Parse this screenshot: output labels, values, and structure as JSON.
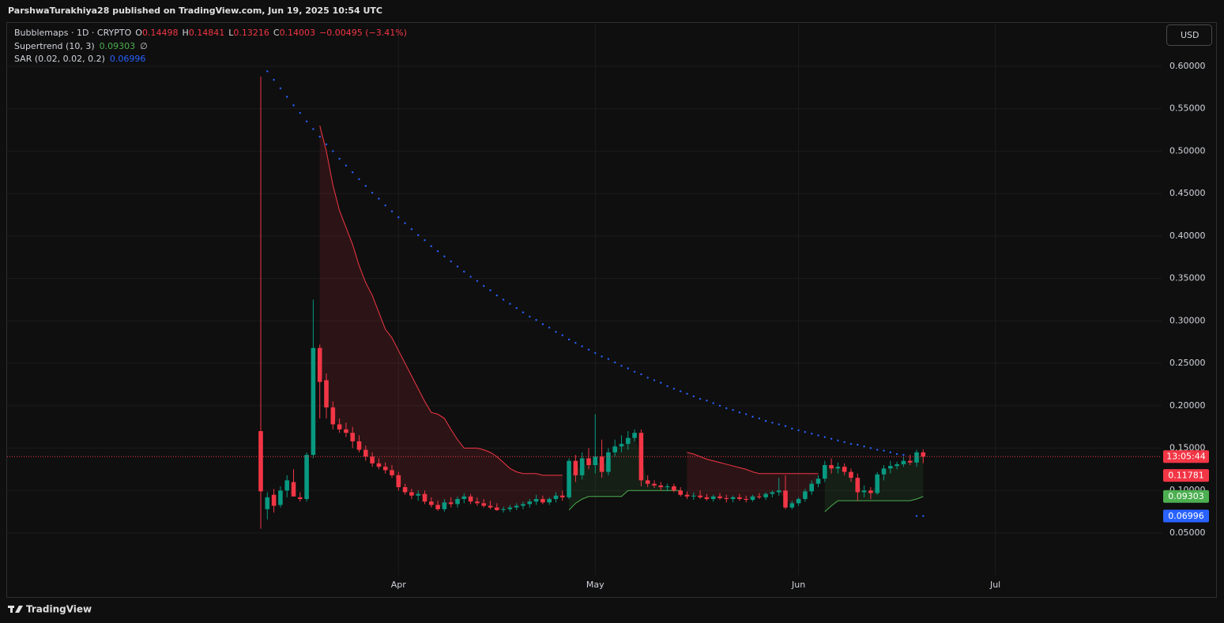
{
  "header": {
    "byline": "ParshwaTurakhiya28 published on TradingView.com, Jun 19, 2025 10:54 UTC",
    "currency": "USD",
    "brand": "TradingView"
  },
  "chart_data": {
    "type": "candlestick",
    "legend": {
      "symbol": "Bubblemaps · 1D · CRYPTO",
      "o": "O",
      "h": "H",
      "l": "L",
      "c": "C",
      "change": "−0.00495 (−3.41%)"
    },
    "up_color": "#089981",
    "down_color": "#f23645",
    "categories": [
      null,
      null,
      null,
      null,
      null,
      null,
      null,
      null,
      null,
      null,
      null,
      null,
      null,
      null,
      null,
      null,
      null,
      null,
      null,
      null,
      null,
      "Apr",
      null,
      null,
      null,
      null,
      null,
      null,
      null,
      null,
      null,
      null,
      null,
      null,
      null,
      null,
      null,
      null,
      null,
      null,
      null,
      null,
      null,
      null,
      null,
      null,
      null,
      null,
      null,
      null,
      null,
      "May",
      null,
      null,
      null,
      null,
      null,
      null,
      null,
      null,
      null,
      null,
      null,
      null,
      null,
      null,
      null,
      null,
      null,
      null,
      null,
      null,
      null,
      null,
      null,
      null,
      null,
      null,
      null,
      null,
      null,
      null,
      "Jun",
      null,
      null,
      null,
      null,
      null,
      null,
      null,
      null,
      null,
      null,
      null,
      null,
      null,
      null,
      null,
      null,
      null,
      null,
      null,
      null,
      null,
      null,
      null,
      null,
      null,
      null,
      null,
      null,
      null,
      "Jul"
    ],
    "ohlc": [
      [
        0.17,
        0.588,
        0.055,
        0.099
      ],
      [
        0.078,
        0.098,
        0.066,
        0.092
      ],
      [
        0.095,
        0.102,
        0.074,
        0.082
      ],
      [
        0.083,
        0.105,
        0.08,
        0.1
      ],
      [
        0.1,
        0.118,
        0.092,
        0.112
      ],
      [
        0.11,
        0.125,
        0.095,
        0.093
      ],
      [
        0.092,
        0.098,
        0.087,
        0.09
      ],
      [
        0.09,
        0.145,
        0.087,
        0.142
      ],
      [
        0.142,
        0.325,
        0.138,
        0.268
      ],
      [
        0.268,
        0.272,
        0.185,
        0.228
      ],
      [
        0.23,
        0.238,
        0.185,
        0.198
      ],
      [
        0.198,
        0.205,
        0.172,
        0.178
      ],
      [
        0.178,
        0.185,
        0.168,
        0.172
      ],
      [
        0.172,
        0.18,
        0.163,
        0.168
      ],
      [
        0.168,
        0.175,
        0.15,
        0.158
      ],
      [
        0.158,
        0.165,
        0.145,
        0.148
      ],
      [
        0.148,
        0.153,
        0.135,
        0.14
      ],
      [
        0.14,
        0.145,
        0.128,
        0.132
      ],
      [
        0.132,
        0.138,
        0.125,
        0.128
      ],
      [
        0.128,
        0.133,
        0.12,
        0.124
      ],
      [
        0.124,
        0.13,
        0.115,
        0.118
      ],
      [
        0.118,
        0.122,
        0.1,
        0.104
      ],
      [
        0.104,
        0.108,
        0.095,
        0.098
      ],
      [
        0.098,
        0.102,
        0.09,
        0.094
      ],
      [
        0.094,
        0.1,
        0.088,
        0.096
      ],
      [
        0.096,
        0.1,
        0.084,
        0.087
      ],
      [
        0.087,
        0.092,
        0.08,
        0.083
      ],
      [
        0.083,
        0.088,
        0.076,
        0.078
      ],
      [
        0.078,
        0.09,
        0.075,
        0.086
      ],
      [
        0.086,
        0.092,
        0.08,
        0.084
      ],
      [
        0.084,
        0.093,
        0.08,
        0.09
      ],
      [
        0.09,
        0.097,
        0.085,
        0.093
      ],
      [
        0.093,
        0.096,
        0.084,
        0.087
      ],
      [
        0.087,
        0.092,
        0.082,
        0.085
      ],
      [
        0.085,
        0.09,
        0.08,
        0.082
      ],
      [
        0.082,
        0.088,
        0.078,
        0.08
      ],
      [
        0.08,
        0.085,
        0.076,
        0.077
      ],
      [
        0.077,
        0.081,
        0.074,
        0.078
      ],
      [
        0.078,
        0.083,
        0.075,
        0.08
      ],
      [
        0.08,
        0.085,
        0.077,
        0.082
      ],
      [
        0.082,
        0.087,
        0.078,
        0.084
      ],
      [
        0.084,
        0.09,
        0.08,
        0.087
      ],
      [
        0.087,
        0.095,
        0.083,
        0.09
      ],
      [
        0.09,
        0.094,
        0.084,
        0.086
      ],
      [
        0.086,
        0.092,
        0.083,
        0.09
      ],
      [
        0.09,
        0.098,
        0.086,
        0.094
      ],
      [
        0.094,
        0.1,
        0.088,
        0.092
      ],
      [
        0.092,
        0.138,
        0.09,
        0.135
      ],
      [
        0.135,
        0.142,
        0.11,
        0.118
      ],
      [
        0.118,
        0.145,
        0.113,
        0.138
      ],
      [
        0.138,
        0.15,
        0.125,
        0.13
      ],
      [
        0.13,
        0.19,
        0.12,
        0.14
      ],
      [
        0.14,
        0.16,
        0.115,
        0.122
      ],
      [
        0.122,
        0.15,
        0.118,
        0.145
      ],
      [
        0.145,
        0.16,
        0.14,
        0.152
      ],
      [
        0.152,
        0.165,
        0.145,
        0.155
      ],
      [
        0.155,
        0.17,
        0.148,
        0.162
      ],
      [
        0.162,
        0.172,
        0.158,
        0.168
      ],
      [
        0.168,
        0.172,
        0.105,
        0.112
      ],
      [
        0.112,
        0.118,
        0.104,
        0.108
      ],
      [
        0.108,
        0.112,
        0.103,
        0.106
      ],
      [
        0.106,
        0.11,
        0.1,
        0.104
      ],
      [
        0.104,
        0.108,
        0.099,
        0.105
      ],
      [
        0.105,
        0.108,
        0.098,
        0.1
      ],
      [
        0.1,
        0.104,
        0.093,
        0.095
      ],
      [
        0.095,
        0.099,
        0.09,
        0.093
      ],
      [
        0.093,
        0.098,
        0.089,
        0.094
      ],
      [
        0.094,
        0.1,
        0.09,
        0.092
      ],
      [
        0.092,
        0.096,
        0.088,
        0.09
      ],
      [
        0.09,
        0.095,
        0.087,
        0.093
      ],
      [
        0.093,
        0.097,
        0.089,
        0.091
      ],
      [
        0.091,
        0.095,
        0.086,
        0.09
      ],
      [
        0.09,
        0.094,
        0.086,
        0.092
      ],
      [
        0.092,
        0.096,
        0.088,
        0.09
      ],
      [
        0.09,
        0.094,
        0.086,
        0.089
      ],
      [
        0.089,
        0.095,
        0.087,
        0.093
      ],
      [
        0.093,
        0.097,
        0.09,
        0.092
      ],
      [
        0.092,
        0.098,
        0.089,
        0.096
      ],
      [
        0.096,
        0.1,
        0.092,
        0.098
      ],
      [
        0.098,
        0.115,
        0.094,
        0.1
      ],
      [
        0.1,
        0.118,
        0.078,
        0.08
      ],
      [
        0.08,
        0.088,
        0.078,
        0.085
      ],
      [
        0.085,
        0.092,
        0.082,
        0.09
      ],
      [
        0.09,
        0.102,
        0.087,
        0.099
      ],
      [
        0.099,
        0.112,
        0.095,
        0.108
      ],
      [
        0.108,
        0.118,
        0.104,
        0.114
      ],
      [
        0.114,
        0.135,
        0.11,
        0.13
      ],
      [
        0.13,
        0.138,
        0.12,
        0.126
      ],
      [
        0.126,
        0.133,
        0.12,
        0.128
      ],
      [
        0.128,
        0.132,
        0.118,
        0.122
      ],
      [
        0.122,
        0.126,
        0.11,
        0.115
      ],
      [
        0.115,
        0.12,
        0.088,
        0.098
      ],
      [
        0.098,
        0.106,
        0.092,
        0.1
      ],
      [
        0.1,
        0.104,
        0.09,
        0.097
      ],
      [
        0.097,
        0.122,
        0.095,
        0.119
      ],
      [
        0.119,
        0.13,
        0.112,
        0.126
      ],
      [
        0.126,
        0.135,
        0.12,
        0.129
      ],
      [
        0.129,
        0.134,
        0.125,
        0.131
      ],
      [
        0.131,
        0.14,
        0.128,
        0.135
      ],
      [
        0.135,
        0.142,
        0.13,
        0.133
      ],
      [
        0.133,
        0.148,
        0.128,
        0.145
      ],
      [
        0.14498,
        0.14841,
        0.13216,
        0.14003
      ],
      null,
      null,
      null,
      null,
      null,
      null,
      null,
      null,
      null,
      null,
      null
    ],
    "supertrend": {
      "label": "Supertrend (10, 3)",
      "symbol": "∅",
      "up_color": "#4caf50",
      "down_color": "#f23645",
      "down": [
        null,
        null,
        null,
        null,
        null,
        null,
        null,
        null,
        null,
        0.53,
        0.5,
        0.46,
        0.43,
        0.41,
        0.39,
        0.365,
        0.345,
        0.33,
        0.31,
        0.29,
        0.28,
        0.265,
        0.25,
        0.235,
        0.22,
        0.205,
        0.192,
        0.19,
        0.185,
        0.172,
        0.16,
        0.15,
        0.15,
        0.15,
        0.148,
        0.145,
        0.14,
        0.133,
        0.126,
        0.122,
        0.12,
        0.12,
        0.12,
        0.118,
        0.118,
        0.118,
        0.118,
        null,
        null,
        null,
        null,
        null,
        null,
        null,
        null,
        null,
        null,
        null,
        null,
        null,
        null,
        null,
        null,
        null,
        null,
        0.145,
        0.143,
        0.14,
        0.137,
        0.135,
        0.133,
        0.131,
        0.129,
        0.127,
        0.125,
        0.122,
        0.12,
        0.12,
        0.12,
        0.12,
        0.12,
        0.12,
        0.12,
        0.12,
        0.12,
        0.12,
        null,
        null,
        null,
        null,
        null,
        null,
        null,
        null,
        null,
        null,
        null,
        null,
        null,
        null,
        null,
        null,
        null,
        null,
        null,
        null,
        null,
        null,
        null,
        null,
        null,
        null,
        null
      ],
      "up": [
        null,
        null,
        null,
        null,
        null,
        null,
        null,
        null,
        null,
        null,
        null,
        null,
        null,
        null,
        null,
        null,
        null,
        null,
        null,
        null,
        null,
        null,
        null,
        null,
        null,
        null,
        null,
        null,
        null,
        null,
        null,
        null,
        null,
        null,
        null,
        null,
        null,
        null,
        null,
        null,
        null,
        null,
        null,
        null,
        null,
        null,
        null,
        0.077,
        0.085,
        0.09,
        0.093,
        0.093,
        0.093,
        0.093,
        0.093,
        0.093,
        0.1,
        0.1,
        0.1,
        0.1,
        0.1,
        0.1,
        0.1,
        0.1,
        0.1,
        null,
        null,
        null,
        null,
        null,
        null,
        null,
        null,
        null,
        null,
        null,
        null,
        null,
        null,
        null,
        null,
        null,
        null,
        null,
        null,
        null,
        0.075,
        0.082,
        0.088,
        0.088,
        0.088,
        0.088,
        0.088,
        0.088,
        0.088,
        0.088,
        0.088,
        0.088,
        0.088,
        0.088,
        0.09,
        0.09303,
        null,
        null,
        null,
        null,
        null,
        null,
        null,
        null,
        null,
        null,
        null
      ]
    },
    "sar": {
      "label": "SAR (0.02, 0.02, 0.2)",
      "color": "#2962ff",
      "values": [
        null,
        0.594,
        0.584,
        0.574,
        0.564,
        0.554,
        0.545,
        0.535,
        0.526,
        0.517,
        0.508,
        0.5,
        0.491,
        0.483,
        0.475,
        0.467,
        0.459,
        0.451,
        0.444,
        0.436,
        0.429,
        0.422,
        0.415,
        0.408,
        0.401,
        0.395,
        0.388,
        0.382,
        0.376,
        0.37,
        0.364,
        0.358,
        0.352,
        0.347,
        0.341,
        0.336,
        0.33,
        0.325,
        0.32,
        0.315,
        0.31,
        0.305,
        0.301,
        0.296,
        0.292,
        0.287,
        0.283,
        0.278,
        0.274,
        0.27,
        0.266,
        0.262,
        0.258,
        0.255,
        0.251,
        0.247,
        0.244,
        0.24,
        0.237,
        0.233,
        0.23,
        0.227,
        0.223,
        0.22,
        0.217,
        0.214,
        0.211,
        0.208,
        0.206,
        0.203,
        0.2,
        0.197,
        0.195,
        0.192,
        0.19,
        0.187,
        0.185,
        0.182,
        0.18,
        0.178,
        0.176,
        0.173,
        0.171,
        0.169,
        0.167,
        0.165,
        0.163,
        0.161,
        0.159,
        0.157,
        0.155,
        0.154,
        0.152,
        0.15,
        0.148,
        0.147,
        0.145,
        0.143,
        0.142,
        null,
        0.0699,
        0.06996,
        null,
        null,
        null,
        null,
        null,
        null,
        null,
        null,
        null,
        null,
        null
      ]
    },
    "price_badges": [
      {
        "value": 0.11781,
        "color": "#f23645"
      }
    ],
    "countdown": "13:05:44",
    "ylim": [
      0,
      0.65
    ],
    "yticks": [
      {
        "value": 0.05,
        "label": "0.05000"
      },
      {
        "value": 0.1,
        "label": "0.10000"
      },
      {
        "value": 0.15,
        "label": "0.15000"
      },
      {
        "value": 0.2,
        "label": "0.20000"
      },
      {
        "value": 0.25,
        "label": "0.25000"
      },
      {
        "value": 0.3,
        "label": "0.30000"
      },
      {
        "value": 0.35,
        "label": "0.35000"
      },
      {
        "value": 0.4,
        "label": "0.40000"
      },
      {
        "value": 0.45,
        "label": "0.45000"
      },
      {
        "value": 0.5,
        "label": "0.50000"
      },
      {
        "value": 0.55,
        "label": "0.55000"
      },
      {
        "value": 0.6,
        "label": "0.60000"
      }
    ],
    "grid": true
  }
}
